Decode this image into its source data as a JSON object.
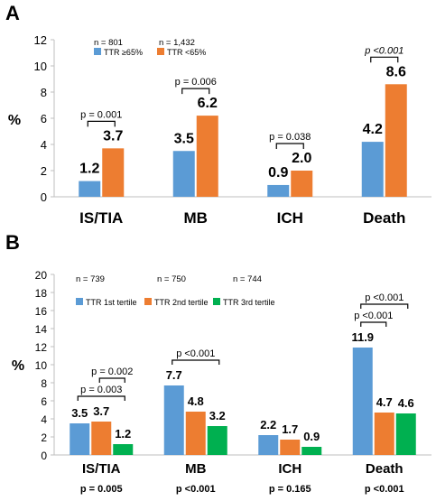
{
  "panels": [
    {
      "letter": "A",
      "y_label": "%",
      "ylim": [
        0,
        12
      ],
      "yticks": [
        0,
        2,
        4,
        6,
        8,
        10,
        12
      ],
      "chart_data": {
        "type": "bar",
        "categories": [
          "IS/TIA",
          "MB",
          "ICH",
          "Death"
        ],
        "series": [
          {
            "name": "TTR ≥65%",
            "n": "n = 801",
            "color": "#5b9bd5",
            "values": [
              1.2,
              3.5,
              0.9,
              4.2
            ],
            "labels": [
              "1.2",
              "3.5",
              "0.9",
              "4.2"
            ]
          },
          {
            "name": "TTR <65%",
            "n": "n = 1,432",
            "color": "#ed7d31",
            "values": [
              3.7,
              6.2,
              2.0,
              8.6
            ],
            "labels": [
              "3.7",
              "6.2",
              "2.0",
              "8.6"
            ]
          }
        ],
        "ylim": [
          0,
          12
        ],
        "comparisons": [
          {
            "category": 0,
            "from": 0,
            "to": 1,
            "text": "p = 0.001",
            "italic": false
          },
          {
            "category": 1,
            "from": 0,
            "to": 1,
            "text": "p = 0.006",
            "italic": false
          },
          {
            "category": 2,
            "from": 0,
            "to": 1,
            "text": "p = 0.038",
            "italic": false
          },
          {
            "category": 3,
            "from": 0,
            "to": 1,
            "text": "p <0.001",
            "italic": true
          }
        ],
        "legend_position": "top-center"
      }
    },
    {
      "letter": "B",
      "y_label": "%",
      "ylim": [
        0,
        20
      ],
      "yticks": [
        0,
        2,
        4,
        6,
        8,
        10,
        12,
        14,
        16,
        18,
        20
      ],
      "chart_data": {
        "type": "bar",
        "categories": [
          "IS/TIA",
          "MB",
          "ICH",
          "Death"
        ],
        "series": [
          {
            "name": "TTR 1st tertile",
            "n": "n = 739",
            "color": "#5b9bd5",
            "values": [
              3.5,
              7.7,
              2.2,
              11.9
            ],
            "labels": [
              "3.5",
              "7.7",
              "2.2",
              "11.9"
            ]
          },
          {
            "name": "TTR 2nd tertile",
            "n": "n = 750",
            "color": "#ed7d31",
            "values": [
              3.7,
              4.8,
              1.7,
              4.7
            ],
            "labels": [
              "3.7",
              "4.8",
              "1.7",
              "4.7"
            ]
          },
          {
            "name": "TTR 3rd tertile",
            "n": "n = 744",
            "color": "#00b050",
            "values": [
              1.2,
              3.2,
              0.9,
              4.6
            ],
            "labels": [
              "1.2",
              "3.2",
              "0.9",
              "4.6"
            ]
          }
        ],
        "ylim": [
          0,
          20
        ],
        "comparisons": [
          {
            "category": 0,
            "from": 0,
            "to": 2,
            "text": "p = 0.003",
            "italic": false
          },
          {
            "category": 0,
            "from": 1,
            "to": 2,
            "text": "p = 0.002",
            "italic": false
          },
          {
            "category": 1,
            "from": 0,
            "to": 2,
            "text": "p <0.001",
            "italic": false
          },
          {
            "category": 3,
            "from": 0,
            "to": 1,
            "text": "p <0.001",
            "italic": false
          },
          {
            "category": 3,
            "from": 0,
            "to": 2,
            "text": "p <0.001",
            "italic": false
          }
        ],
        "bottom_p": [
          "p = 0.005",
          "p <0.001",
          "p = 0.165",
          "p <0.001"
        ],
        "legend_position": "top-left"
      }
    }
  ]
}
